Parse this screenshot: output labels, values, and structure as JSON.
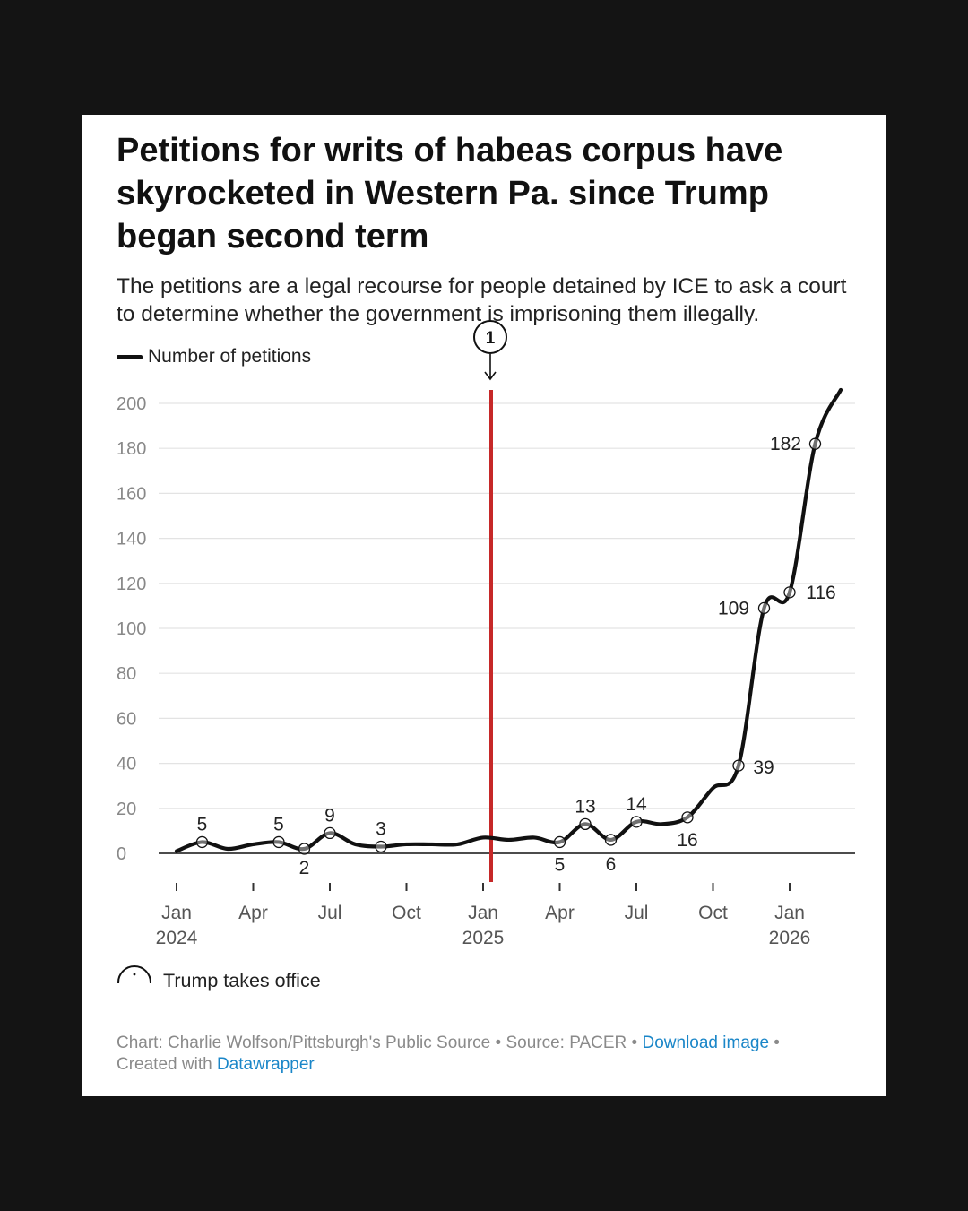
{
  "title": "Petitions for writs of habeas corpus have skyrocketed in Western Pa. since Trump began second term",
  "subtitle": "The petitions are a legal recourse for people detained by ICE to ask a court to determine whether the government is imprisoning them illegally.",
  "legend": {
    "label": "Number of petitions"
  },
  "annotation": {
    "number": "1",
    "label": "Trump takes office"
  },
  "footer": {
    "credit": "Chart: Charlie Wolfson/Pittsburgh's Public Source",
    "source": "Source: PACER",
    "download_label": "Download image",
    "created_prefix": "Created with",
    "tool": "Datawrapper"
  },
  "colors": {
    "line": "#111111",
    "annotation_line": "#c62828",
    "link": "#1a86c8"
  },
  "chart_data": {
    "type": "line",
    "series": [
      {
        "name": "Number of petitions",
        "points": [
          {
            "x": "2024-01",
            "y": 1
          },
          {
            "x": "2024-02",
            "y": 5,
            "label": "5"
          },
          {
            "x": "2024-03",
            "y": 2
          },
          {
            "x": "2024-04",
            "y": 4
          },
          {
            "x": "2024-05",
            "y": 5,
            "label": "5"
          },
          {
            "x": "2024-06",
            "y": 2,
            "label": "2"
          },
          {
            "x": "2024-07",
            "y": 9,
            "label": "9"
          },
          {
            "x": "2024-08",
            "y": 4
          },
          {
            "x": "2024-09",
            "y": 3,
            "label": "3"
          },
          {
            "x": "2024-10",
            "y": 4
          },
          {
            "x": "2024-11",
            "y": 4
          },
          {
            "x": "2024-12",
            "y": 4
          },
          {
            "x": "2025-01",
            "y": 7
          },
          {
            "x": "2025-02",
            "y": 6
          },
          {
            "x": "2025-03",
            "y": 7
          },
          {
            "x": "2025-04",
            "y": 5,
            "label": "5"
          },
          {
            "x": "2025-05",
            "y": 13,
            "label": "13"
          },
          {
            "x": "2025-06",
            "y": 6,
            "label": "6"
          },
          {
            "x": "2025-07",
            "y": 14,
            "label": "14"
          },
          {
            "x": "2025-08",
            "y": 13
          },
          {
            "x": "2025-09",
            "y": 16,
            "label": "16"
          },
          {
            "x": "2025-10",
            "y": 29
          },
          {
            "x": "2025-11",
            "y": 39,
            "label": "39"
          },
          {
            "x": "2025-12",
            "y": 109,
            "label": "109"
          },
          {
            "x": "2026-01",
            "y": 116,
            "label": "116"
          },
          {
            "x": "2026-02",
            "y": 182,
            "label": "182"
          },
          {
            "x": "2026-03",
            "y": 206
          }
        ]
      }
    ],
    "y_ticks": [
      "0",
      "20",
      "40",
      "60",
      "80",
      "100",
      "120",
      "140",
      "160",
      "180",
      "200"
    ],
    "x_ticks": [
      {
        "x": "2024-01",
        "line1": "Jan",
        "line2": "2024"
      },
      {
        "x": "2024-04",
        "line1": "Apr",
        "line2": ""
      },
      {
        "x": "2024-07",
        "line1": "Jul",
        "line2": ""
      },
      {
        "x": "2024-10",
        "line1": "Oct",
        "line2": ""
      },
      {
        "x": "2025-01",
        "line1": "Jan",
        "line2": "2025"
      },
      {
        "x": "2025-04",
        "line1": "Apr",
        "line2": ""
      },
      {
        "x": "2025-07",
        "line1": "Jul",
        "line2": ""
      },
      {
        "x": "2025-10",
        "line1": "Oct",
        "line2": ""
      },
      {
        "x": "2026-01",
        "line1": "Jan",
        "line2": "2026"
      }
    ],
    "ylim": [
      0,
      200
    ],
    "grid": true,
    "legend_position": "top-left",
    "annotation_x": "2025-01",
    "xlabel": "",
    "ylabel": ""
  }
}
